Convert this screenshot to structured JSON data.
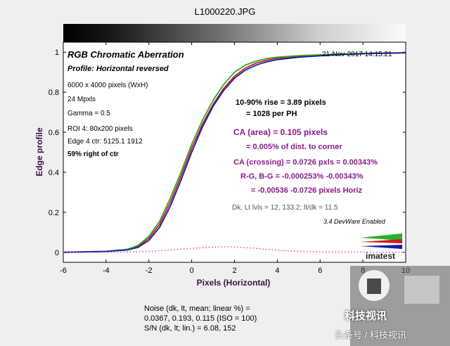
{
  "window": {
    "file_title": "L1000220.JPG"
  },
  "header": {
    "title": "RGB Chromatic Aberration",
    "profile": "Profile: Horizontal reversed",
    "timestamp": "21-Nov-2017 14:15:21"
  },
  "info": [
    "6000 x 4000 pixels (WxH)",
    "24 Mpxls",
    "Gamma = 0.5",
    "ROI 4: 80x200 pixels",
    "Edge 4 ctr: 5125.1  1912",
    "59% right of ctr"
  ],
  "measurements": {
    "rise_line1": "10-90% rise = 3.89 pixels",
    "rise_line2": "= 1028 per PH",
    "ca_area_line1": "CA (area) = 0.105 pixels",
    "ca_area_line2": "= 0.005% of dist. to corner",
    "ca_crossing": "CA (crossing) = 0.0726 pxls = 0.00343%",
    "rg_bg": "R-G, B-G = -0.000253%  -0.00343%",
    "horiz": "= -0.00536  -0.0726 pixels Horiz",
    "dk_lt": "Dk, Lt lvls = 12, 133.2;  lt/dk = 11.5",
    "version": "3.4  DevWare Enabled"
  },
  "noise": {
    "line1": "Noise (dk, lt, mean; linear %) =",
    "line2": "0.0367,  0.193,  0.115  (ISO =  100)",
    "line3": "S/N (dk, lt; lin.) = 6.08,  152"
  },
  "logo": {
    "brand": "imatest",
    "watermark_cn": "科技视讯",
    "watermark_footer": "头条号 / 科技视讯"
  },
  "colors": {
    "red": "#d11a1a",
    "green": "#22b022",
    "blue": "#1a1aa8",
    "noise": "#e040d0",
    "ca_text": "#8b1a8b"
  },
  "chart_data": {
    "type": "line",
    "xlabel": "Pixels (Horizontal)",
    "ylabel": "Edge profile",
    "xlim": [
      -6,
      10
    ],
    "ylim": [
      -0.05,
      1.05
    ],
    "xticks": [
      -6,
      -4,
      -2,
      0,
      2,
      4,
      6,
      8,
      10
    ],
    "yticks": [
      0,
      0.2,
      0.4,
      0.6,
      0.8,
      1
    ],
    "ytick_labels": [
      "0",
      "0.2",
      "0.4",
      "0.6",
      "0.8",
      "1"
    ],
    "grid": false,
    "series": [
      {
        "color": "red",
        "x": [
          -6,
          -4,
          -3,
          -2.5,
          -2,
          -1.5,
          -1,
          -0.5,
          0,
          0.5,
          1,
          1.5,
          2,
          2.5,
          3,
          3.5,
          4,
          5,
          6,
          7,
          8,
          9,
          10
        ],
        "y": [
          0,
          0.005,
          0.015,
          0.03,
          0.07,
          0.14,
          0.25,
          0.38,
          0.52,
          0.64,
          0.74,
          0.82,
          0.88,
          0.92,
          0.945,
          0.96,
          0.97,
          0.98,
          0.985,
          0.99,
          0.993,
          0.995,
          0.997
        ]
      },
      {
        "color": "green",
        "x": [
          -6,
          -4,
          -3,
          -2.5,
          -2,
          -1.5,
          -1,
          -0.5,
          0,
          0.5,
          1,
          1.5,
          2,
          2.5,
          3,
          3.5,
          4,
          5,
          6,
          7,
          8,
          9,
          10
        ],
        "y": [
          0,
          0.005,
          0.015,
          0.035,
          0.08,
          0.155,
          0.27,
          0.4,
          0.54,
          0.66,
          0.76,
          0.84,
          0.9,
          0.935,
          0.955,
          0.968,
          0.975,
          0.983,
          0.987,
          0.991,
          0.994,
          0.996,
          0.997
        ]
      },
      {
        "color": "blue",
        "x": [
          -6,
          -4,
          -3,
          -2.5,
          -2,
          -1.5,
          -1,
          -0.5,
          0,
          0.5,
          1,
          1.5,
          2,
          2.5,
          3,
          3.5,
          4,
          5,
          6,
          7,
          8,
          9,
          10
        ],
        "y": [
          0,
          0.004,
          0.012,
          0.025,
          0.06,
          0.125,
          0.23,
          0.36,
          0.5,
          0.625,
          0.73,
          0.81,
          0.87,
          0.91,
          0.935,
          0.952,
          0.963,
          0.975,
          0.982,
          0.988,
          0.992,
          0.995,
          0.997
        ]
      },
      {
        "color": "noise",
        "style": "dotted",
        "x": [
          -6,
          -4,
          -2,
          -1,
          0,
          1,
          1.5,
          2,
          3,
          4,
          5,
          6,
          8,
          10
        ],
        "y": [
          0,
          0,
          0.005,
          0.012,
          0.02,
          0.026,
          0.028,
          0.027,
          0.02,
          0.01,
          0.005,
          0.002,
          0.001,
          0
        ]
      }
    ]
  }
}
